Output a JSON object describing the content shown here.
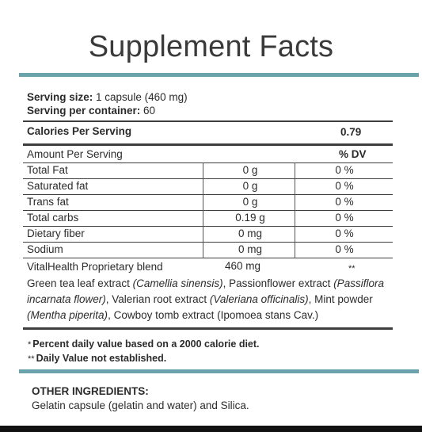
{
  "title": "Supplement Facts",
  "serving": {
    "size_label": "Serving size:",
    "size_value": " 1 capsule (460 mg)",
    "container_label": "Serving per container:",
    "container_value": " 60"
  },
  "calories": {
    "label": "Calories Per Serving",
    "value": "0.79"
  },
  "header": {
    "amount": "Amount Per Serving",
    "dv": "% DV"
  },
  "rows": [
    {
      "name": "Total Fat",
      "amount": "0 g",
      "dv": "0 %"
    },
    {
      "name": "Saturated fat",
      "amount": "0 g",
      "dv": "0 %"
    },
    {
      "name": "Trans fat",
      "amount": "0 g",
      "dv": "0 %"
    },
    {
      "name": "Total carbs",
      "amount": "0.19 g",
      "dv": "0 %"
    },
    {
      "name": "Dietary fiber",
      "amount": "0 mg",
      "dv": "0 %"
    },
    {
      "name": "Sodium",
      "amount": "0 mg",
      "dv": "0 %"
    }
  ],
  "blend": {
    "name": "VitalHealth Proprietary blend",
    "amount": "460 mg",
    "dv": "**",
    "parts": [
      {
        "text": "Green tea leaf extract ",
        "italic": false
      },
      {
        "text": "(Camellia sinensis)",
        "italic": true
      },
      {
        "text": ", Passionflower extract ",
        "italic": false
      },
      {
        "text": "(Passiflora incarnata flower)",
        "italic": true
      },
      {
        "text": ", Valerian root extract ",
        "italic": false
      },
      {
        "text": "(Valeriana officinalis)",
        "italic": true
      },
      {
        "text": ", Mint powder ",
        "italic": false
      },
      {
        "text": "(Mentha piperita)",
        "italic": true
      },
      {
        "text": ", Cowboy tomb extract (Ipomoea stans Cav.)",
        "italic": false
      }
    ]
  },
  "footnotes": {
    "note1_mark": "*",
    "note1": "Percent daily value based on a 2000 calorie diet.",
    "note2_mark": "**",
    "note2": "Daily Value not established."
  },
  "other": {
    "heading": "OTHER INGREDIENTS:",
    "text": "Gelatin capsule (gelatin and water) and Silica."
  }
}
